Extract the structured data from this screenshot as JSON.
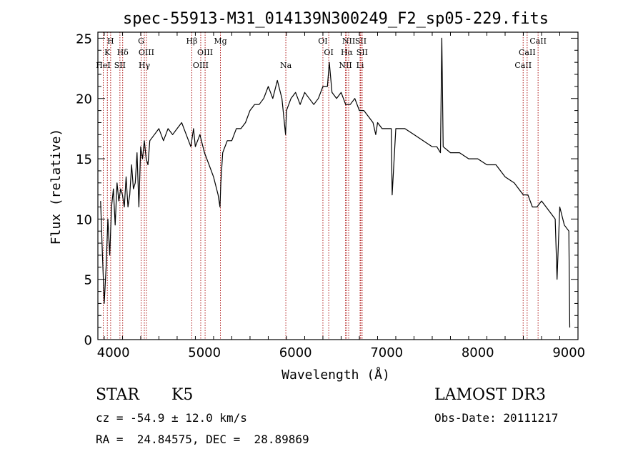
{
  "chart_data": {
    "type": "line",
    "title": "spec-55913-M31_014139N300249_F2_sp05-229.fits",
    "xlabel": "Wavelength (Å)",
    "ylabel": "Flux (relative)",
    "xlim": [
      3830,
      9100
    ],
    "ylim": [
      0,
      25.5
    ],
    "xticks": [
      4000,
      5000,
      6000,
      7000,
      8000,
      9000
    ],
    "yticks": [
      0,
      5,
      10,
      15,
      20,
      25
    ],
    "grid": false,
    "line_color": "#000000",
    "marker_color": "#b22222",
    "series": [
      {
        "x": [
          3860,
          3880,
          3900,
          3920,
          3940,
          3960,
          3980,
          4000,
          4020,
          4040,
          4060,
          4080,
          4100,
          4120,
          4140,
          4160,
          4180,
          4200,
          4220,
          4240,
          4260,
          4280,
          4300,
          4320,
          4340,
          4360,
          4380,
          4400,
          4450,
          4500,
          4550,
          4600,
          4650,
          4700,
          4750,
          4800,
          4850,
          4880,
          4900,
          4950,
          5000,
          5050,
          5100,
          5150,
          5170,
          5180,
          5200,
          5250,
          5300,
          5350,
          5400,
          5450,
          5500,
          5550,
          5600,
          5650,
          5700,
          5750,
          5800,
          5850,
          5890,
          5900,
          5950,
          6000,
          6050,
          6100,
          6150,
          6200,
          6250,
          6300,
          6350,
          6370,
          6400,
          6450,
          6500,
          6550,
          6600,
          6650,
          6700,
          6750,
          6800,
          6850,
          6880,
          6900,
          6950,
          7000,
          7050,
          7060,
          7100,
          7150,
          7200,
          7300,
          7400,
          7500,
          7550,
          7590,
          7605,
          7620,
          7700,
          7800,
          7900,
          8000,
          8100,
          8200,
          8300,
          8400,
          8450,
          8500,
          8550,
          8600,
          8650,
          8700,
          8750,
          8800,
          8850,
          8870,
          8900,
          8950,
          9000,
          9010
        ],
        "y": [
          11.5,
          7.0,
          3.0,
          6.0,
          10.0,
          7.0,
          11.0,
          12.5,
          9.5,
          13.0,
          11.5,
          12.5,
          12.0,
          11.0,
          13.5,
          11.0,
          12.0,
          14.5,
          12.5,
          13.0,
          15.5,
          11.0,
          16.0,
          15.0,
          16.5,
          15.0,
          14.5,
          16.5,
          17.0,
          17.5,
          16.5,
          17.5,
          17.0,
          17.5,
          18.0,
          17.0,
          16.0,
          17.5,
          16.0,
          17.0,
          15.5,
          14.5,
          13.5,
          12.0,
          11.0,
          13.0,
          15.5,
          16.5,
          16.5,
          17.5,
          17.5,
          18.0,
          19.0,
          19.5,
          19.5,
          20.0,
          21.0,
          20.0,
          21.5,
          20.0,
          17.0,
          19.0,
          20.0,
          20.5,
          19.5,
          20.5,
          20.0,
          19.5,
          20.0,
          21.0,
          21.0,
          23.0,
          20.5,
          20.0,
          20.5,
          19.5,
          19.5,
          20.0,
          19.0,
          19.0,
          18.5,
          18.0,
          17.0,
          18.0,
          17.5,
          17.5,
          17.5,
          12.0,
          17.5,
          17.5,
          17.5,
          17.0,
          16.5,
          16.0,
          16.0,
          15.5,
          25.0,
          16.0,
          15.5,
          15.5,
          15.0,
          15.0,
          14.5,
          14.5,
          13.5,
          13.0,
          12.5,
          12.0,
          12.0,
          11.0,
          11.0,
          11.5,
          11.0,
          10.5,
          10.0,
          5.0,
          11.0,
          9.5,
          9.0,
          1.0
        ]
      }
    ],
    "line_markers": [
      {
        "wavelength": 3889,
        "label": "HeI",
        "row": 3
      },
      {
        "wavelength": 3934,
        "label": "K",
        "row": 2
      },
      {
        "wavelength": 3970,
        "label": "H",
        "row": 1
      },
      {
        "wavelength": 4072,
        "label": "SII",
        "row": 3
      },
      {
        "wavelength": 4102,
        "label": "Hδ",
        "row": 2
      },
      {
        "wavelength": 4305,
        "label": "G",
        "row": 1
      },
      {
        "wavelength": 4340,
        "label": "Hγ",
        "row": 3
      },
      {
        "wavelength": 4363,
        "label": "OIII",
        "row": 2
      },
      {
        "wavelength": 4861,
        "label": "Hβ",
        "row": 1
      },
      {
        "wavelength": 4959,
        "label": "OIII",
        "row": 3
      },
      {
        "wavelength": 5007,
        "label": "OIII",
        "row": 2
      },
      {
        "wavelength": 5175,
        "label": "Mg",
        "row": 1
      },
      {
        "wavelength": 5893,
        "label": "Na",
        "row": 3
      },
      {
        "wavelength": 6300,
        "label": "OI",
        "row": 1
      },
      {
        "wavelength": 6364,
        "label": "OI",
        "row": 2
      },
      {
        "wavelength": 6548,
        "label": "NII",
        "row": 3
      },
      {
        "wavelength": 6563,
        "label": "Hα",
        "row": 2
      },
      {
        "wavelength": 6583,
        "label": "NII",
        "row": 1
      },
      {
        "wavelength": 6708,
        "label": "Li",
        "row": 3
      },
      {
        "wavelength": 6716,
        "label": "SII",
        "row": 1
      },
      {
        "wavelength": 6731,
        "label": "SII",
        "row": 2
      },
      {
        "wavelength": 8498,
        "label": "CaII",
        "row": 3
      },
      {
        "wavelength": 8542,
        "label": "CaII",
        "row": 2
      },
      {
        "wavelength": 8662,
        "label": "CaII",
        "row": 1
      }
    ]
  },
  "info": {
    "object_type": "STAR",
    "subclass": "K5",
    "survey": "LAMOST DR3",
    "redshift_line": "cz = -54.9 ± 12.0 km/s",
    "obs_date_line": "Obs-Date: 20111217",
    "coords_line": "RA =  24.84575, DEC =  28.89869"
  }
}
